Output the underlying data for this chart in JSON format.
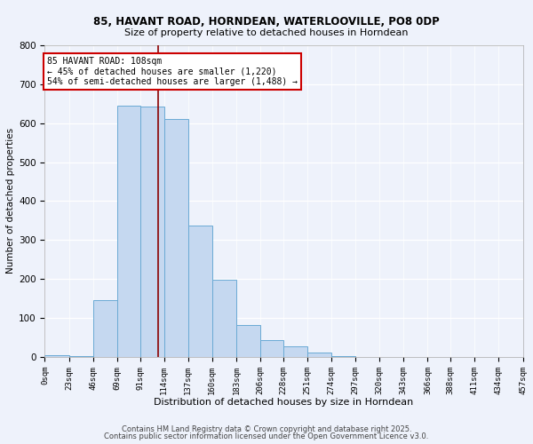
{
  "title": "85, HAVANT ROAD, HORNDEAN, WATERLOOVILLE, PO8 0DP",
  "subtitle": "Size of property relative to detached houses in Horndean",
  "xlabel": "Distribution of detached houses by size in Horndean",
  "ylabel": "Number of detached properties",
  "bar_color": "#c5d8f0",
  "bar_edge_color": "#6aaad4",
  "background_color": "#eef2fb",
  "bins": [
    0,
    23,
    46,
    69,
    91,
    114,
    137,
    160,
    183,
    206,
    228,
    251,
    274,
    297,
    320,
    343,
    366,
    388,
    411,
    434,
    457
  ],
  "counts": [
    5,
    3,
    145,
    645,
    643,
    610,
    338,
    199,
    82,
    42,
    27,
    11,
    3,
    0,
    0,
    0,
    0,
    0,
    0,
    0
  ],
  "tick_labels": [
    "0sqm",
    "23sqm",
    "46sqm",
    "69sqm",
    "91sqm",
    "114sqm",
    "137sqm",
    "160sqm",
    "183sqm",
    "206sqm",
    "228sqm",
    "251sqm",
    "274sqm",
    "297sqm",
    "320sqm",
    "343sqm",
    "366sqm",
    "388sqm",
    "411sqm",
    "434sqm",
    "457sqm"
  ],
  "vline_x": 108,
  "vline_color": "#8b0000",
  "annotation_text": "85 HAVANT ROAD: 108sqm\n← 45% of detached houses are smaller (1,220)\n54% of semi-detached houses are larger (1,488) →",
  "annotation_box_color": "#ffffff",
  "annotation_border_color": "#cc0000",
  "ylim": [
    0,
    800
  ],
  "yticks": [
    0,
    100,
    200,
    300,
    400,
    500,
    600,
    700,
    800
  ],
  "footer1": "Contains HM Land Registry data © Crown copyright and database right 2025.",
  "footer2": "Contains public sector information licensed under the Open Government Licence v3.0."
}
